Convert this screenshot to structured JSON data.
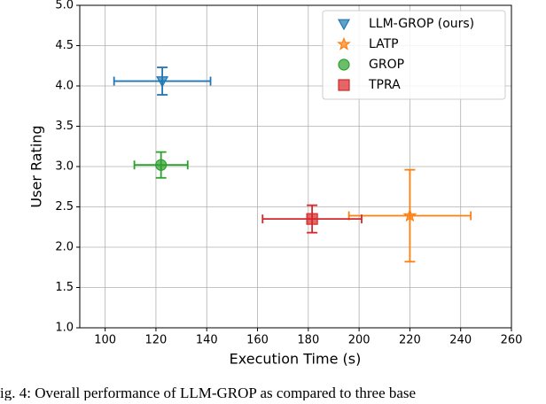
{
  "chart_data": {
    "type": "errorbar-scatter",
    "xlabel": "Execution Time (s)",
    "ylabel": "User Rating",
    "caption": "ig. 4: Overall performance of LLM-GROP as compared to three base",
    "xlim": [
      90,
      260
    ],
    "xticks": [
      100,
      120,
      140,
      160,
      180,
      200,
      220,
      240,
      260
    ],
    "ylim": [
      1,
      5
    ],
    "yticks": [
      {
        "value": 1,
        "label": "1.0"
      },
      {
        "value": 1.5,
        "label": "1.5"
      },
      {
        "value": 2,
        "label": "2.0"
      },
      {
        "value": 2.5,
        "label": "2.5"
      },
      {
        "value": 3,
        "label": "3.0"
      },
      {
        "value": 3.5,
        "label": "3.5"
      },
      {
        "value": 4,
        "label": "4.0"
      },
      {
        "value": 4.5,
        "label": "4.5"
      },
      {
        "value": 5,
        "label": "5.0"
      }
    ],
    "grid": true,
    "legend": "upper right",
    "series": [
      {
        "name": "LLM-GROP (ours)",
        "color": "#1f77b4",
        "marker": "triangle-down",
        "x": [
          122.5
        ],
        "values": [
          4.06
        ],
        "xerr": [
          19
        ],
        "yerr": [
          0.17
        ]
      },
      {
        "name": "LATP",
        "color": "#ff7f0e",
        "marker": "star",
        "x": [
          220
        ],
        "values": [
          2.39
        ],
        "xerr": [
          24
        ],
        "yerr": [
          0.57
        ]
      },
      {
        "name": "GROP",
        "color": "#2ca02c",
        "marker": "circle",
        "x": [
          122
        ],
        "values": [
          3.02
        ],
        "xerr": [
          10.5
        ],
        "yerr": [
          0.16
        ]
      },
      {
        "name": "TPRA",
        "color": "#d62728",
        "marker": "square",
        "x": [
          181.5
        ],
        "values": [
          2.35
        ],
        "xerr": [
          19.5
        ],
        "yerr": [
          0.17
        ]
      }
    ]
  }
}
